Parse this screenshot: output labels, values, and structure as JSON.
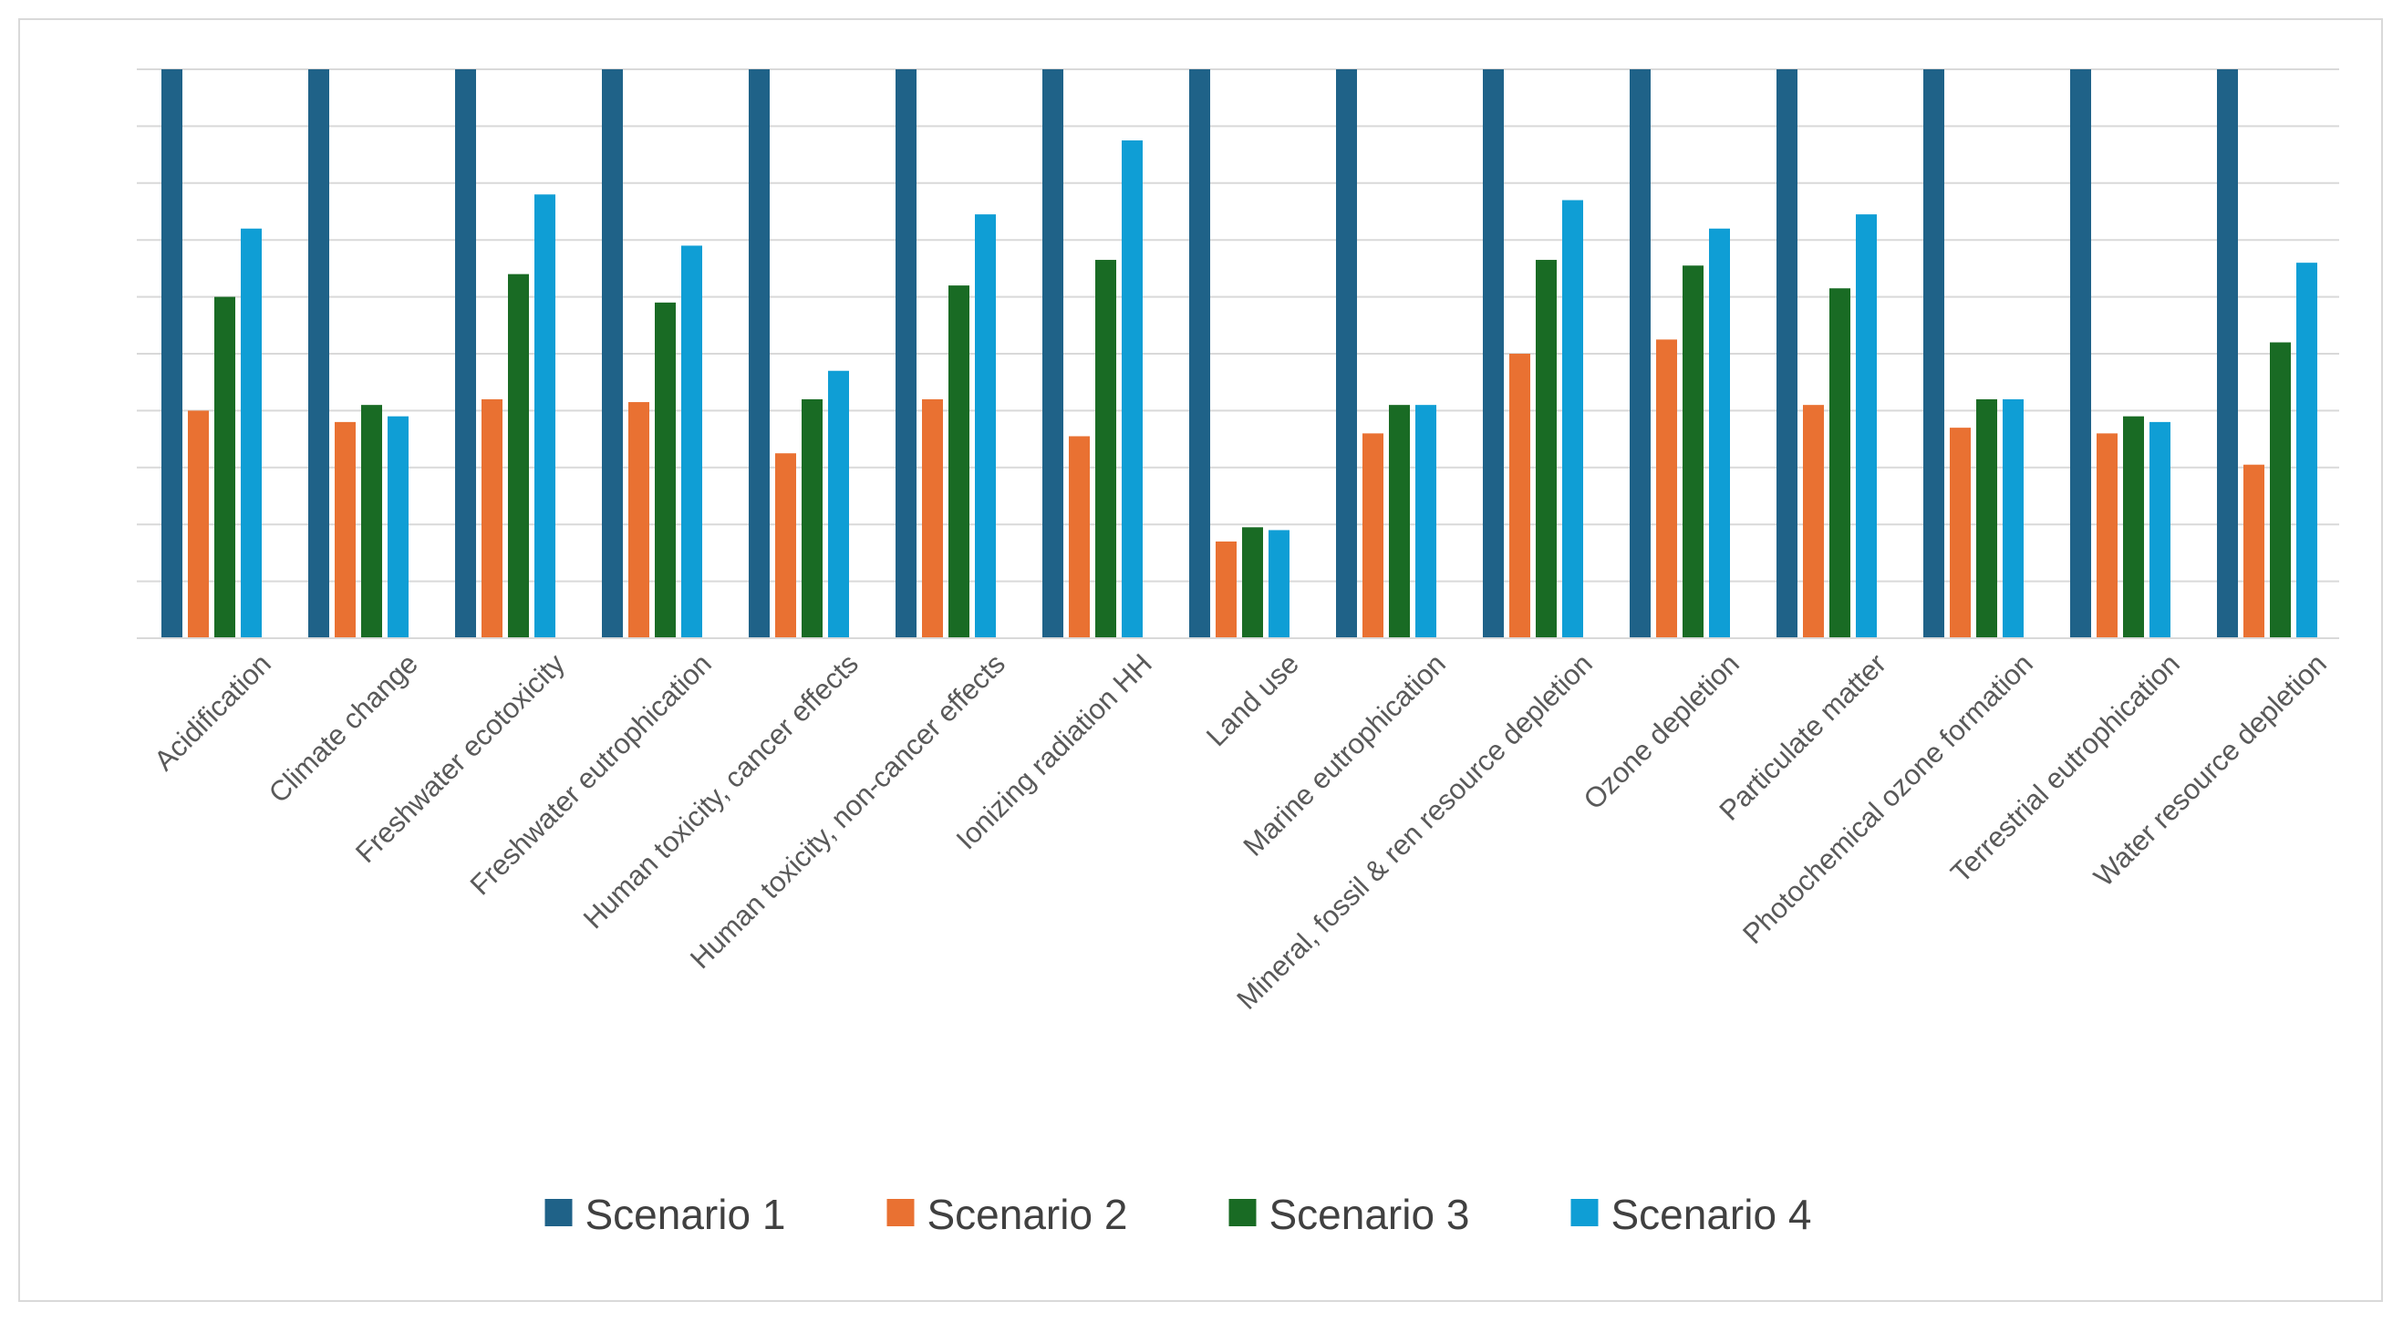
{
  "chart_data": {
    "type": "bar",
    "title": "",
    "xlabel": "",
    "ylabel": "",
    "ylim": [
      0,
      100
    ],
    "grid": true,
    "legend_position": "bottom",
    "categories": [
      "Acidification",
      "Climate change",
      "Freshwater ecotoxicity",
      "Freshwater eutrophication",
      "Human toxicity, cancer effects",
      "Human toxicity, non-cancer effects",
      "Ionizing radiation HH",
      "Land use",
      "Marine eutrophication",
      "Mineral, fossil & ren resource depletion",
      "Ozone depletion",
      "Particulate matter",
      "Photochemical ozone formation",
      "Terrestrial eutrophication",
      "Water resource depletion"
    ],
    "series": [
      {
        "name": "Scenario 1",
        "color": "#1f6288",
        "values": [
          100,
          100,
          100,
          100,
          100,
          100,
          100,
          100,
          100,
          100,
          100,
          100,
          100,
          100,
          100
        ]
      },
      {
        "name": "Scenario 2",
        "color": "#e97132",
        "values": [
          40,
          38,
          42,
          41.5,
          32.5,
          42,
          35.5,
          17,
          36,
          50,
          52.5,
          41,
          37,
          36,
          30.5
        ]
      },
      {
        "name": "Scenario 3",
        "color": "#196b24",
        "values": [
          60,
          41,
          64,
          59,
          42,
          62,
          66.5,
          19.5,
          41,
          66.5,
          65.5,
          61.5,
          42,
          39,
          52
        ]
      },
      {
        "name": "Scenario 4",
        "color": "#0f9ed5",
        "values": [
          72,
          39,
          78,
          69,
          47,
          74.5,
          87.5,
          19,
          41,
          77,
          72,
          74.5,
          42,
          38,
          66
        ]
      }
    ]
  }
}
